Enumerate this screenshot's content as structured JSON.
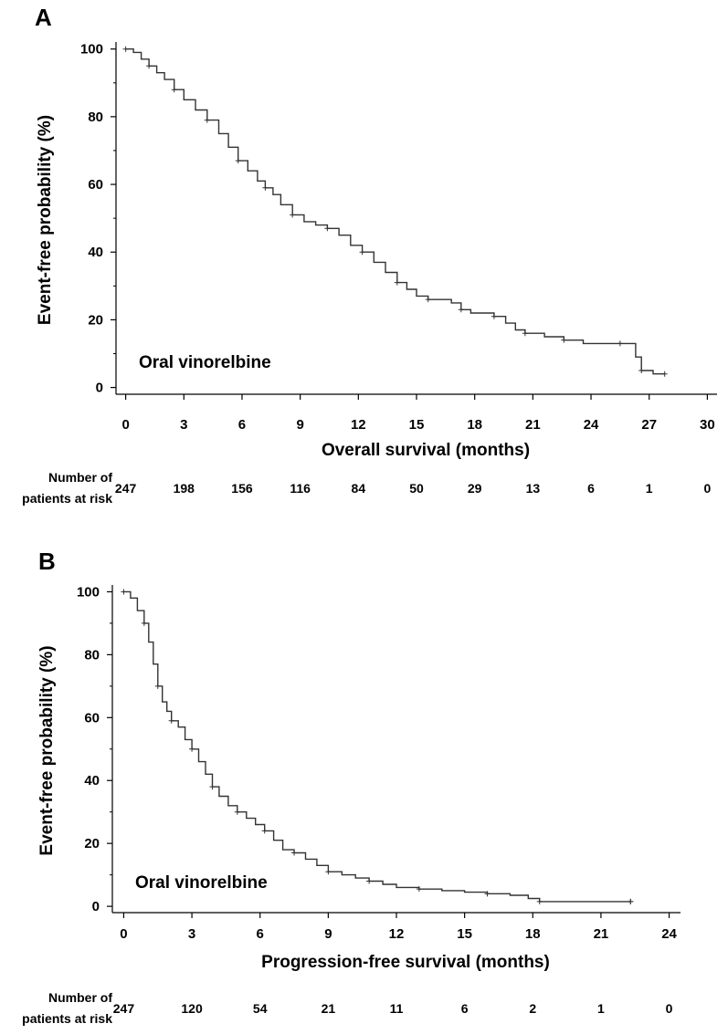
{
  "chart_data": [
    {
      "panel": "A",
      "type": "line",
      "label": "Oral vinorelbine",
      "xlabel": "Overall survival (months)",
      "ylabel": "Event-free probability (%)",
      "xlim": [
        -0.5,
        30.5
      ],
      "ylim": [
        -2,
        101
      ],
      "xticks": [
        "0",
        "3",
        "6",
        "9",
        "12",
        "15",
        "18",
        "21",
        "24",
        "27",
        "30"
      ],
      "yticks": [
        "0",
        "20",
        "40",
        "60",
        "80",
        "100"
      ],
      "series": [
        {
          "name": "Oral vinorelbine",
          "x": [
            0,
            0.4,
            0.8,
            1.2,
            1.6,
            2.0,
            2.5,
            3.0,
            3.6,
            4.2,
            4.8,
            5.3,
            5.8,
            6.3,
            6.8,
            7.2,
            7.6,
            8.0,
            8.6,
            9.2,
            9.8,
            10.4,
            11.0,
            11.6,
            12.2,
            12.8,
            13.4,
            14.0,
            14.5,
            15.0,
            15.6,
            16.2,
            16.8,
            17.3,
            17.8,
            18.4,
            19.0,
            19.6,
            20.1,
            20.6,
            21.0,
            21.6,
            22.6,
            23.6,
            24.5,
            25.5,
            26.0,
            26.3,
            26.6,
            27.2,
            27.8
          ],
          "y": [
            100,
            99,
            97,
            95,
            93,
            91,
            88,
            85,
            82,
            79,
            75,
            71,
            67,
            64,
            61,
            59,
            57,
            54,
            51,
            49,
            48,
            47,
            45,
            42,
            40,
            37,
            34,
            31,
            29,
            27,
            26,
            26,
            25,
            23,
            22,
            22,
            21,
            19,
            17,
            16,
            16,
            15,
            14,
            13,
            13,
            13,
            13,
            9,
            5,
            4,
            4
          ]
        }
      ],
      "risk_title": [
        "Number of",
        "patients at risk"
      ],
      "at_risk": [
        "247",
        "198",
        "156",
        "116",
        "84",
        "50",
        "29",
        "13",
        "6",
        "1",
        "0"
      ]
    },
    {
      "panel": "B",
      "type": "line",
      "label": "Oral vinorelbine",
      "xlabel": "Progression-free survival (months)",
      "ylabel": "Event-free probability (%)",
      "xlim": [
        -0.5,
        24.5
      ],
      "ylim": [
        -2,
        101
      ],
      "xticks": [
        "0",
        "3",
        "6",
        "9",
        "12",
        "15",
        "18",
        "21",
        "24"
      ],
      "yticks": [
        "0",
        "20",
        "40",
        "60",
        "80",
        "100"
      ],
      "series": [
        {
          "name": "Oral vinorelbine",
          "x": [
            0,
            0.3,
            0.6,
            0.9,
            1.1,
            1.3,
            1.5,
            1.7,
            1.9,
            2.1,
            2.4,
            2.7,
            3.0,
            3.3,
            3.6,
            3.9,
            4.2,
            4.6,
            5.0,
            5.4,
            5.8,
            6.2,
            6.6,
            7.0,
            7.5,
            8.0,
            8.5,
            9.0,
            9.6,
            10.2,
            10.8,
            11.4,
            12.0,
            13.0,
            14.0,
            15.0,
            16.0,
            17.0,
            17.8,
            18.3,
            19.5,
            21.0,
            22.3
          ],
          "y": [
            100,
            98,
            94,
            90,
            84,
            77,
            70,
            65,
            62,
            59,
            57,
            53,
            50,
            46,
            42,
            38,
            35,
            32,
            30,
            28,
            26,
            24,
            21,
            18,
            17,
            15,
            13,
            11,
            10,
            9,
            8,
            7,
            6,
            5.5,
            5,
            4.5,
            4,
            3.5,
            2.5,
            1.5,
            1.5,
            1.5,
            1.5
          ]
        }
      ],
      "risk_title": [
        "Number of",
        "patients at risk"
      ],
      "at_risk": [
        "247",
        "120",
        "54",
        "21",
        "11",
        "6",
        "2",
        "1",
        "0"
      ]
    }
  ]
}
